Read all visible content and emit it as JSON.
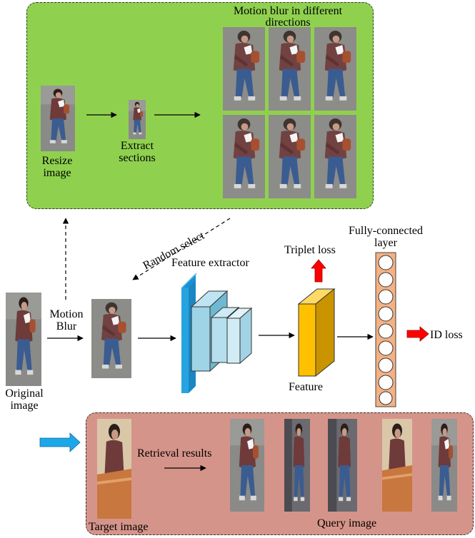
{
  "augmentation_panel": {
    "title": "Motion blur in different directions",
    "resize_label": "Resize image",
    "extract_label": "Extract sections"
  },
  "main_flow": {
    "random_select": "Random select",
    "motion_blur": "Motion Blur",
    "original_image": "Original image",
    "feature_extractor": "Feature extractor",
    "feature": "Feature",
    "triplet_loss": "Triplet loss",
    "fc_layer": "Fully-connected layer",
    "id_loss": "ID loss"
  },
  "retrieval_panel": {
    "retrieval_results": "Retrieval results",
    "target_image": "Target image",
    "query_image": "Query image"
  },
  "colors": {
    "green_panel": "#8fd14f",
    "pink_panel": "#d5948a",
    "extractor_blue": "#27a4e0",
    "feature_gold": "#ffc000",
    "fc_orange": "#f4b183",
    "red_arrow": "#ff0000",
    "blue_arrow": "#1ea7e8"
  }
}
